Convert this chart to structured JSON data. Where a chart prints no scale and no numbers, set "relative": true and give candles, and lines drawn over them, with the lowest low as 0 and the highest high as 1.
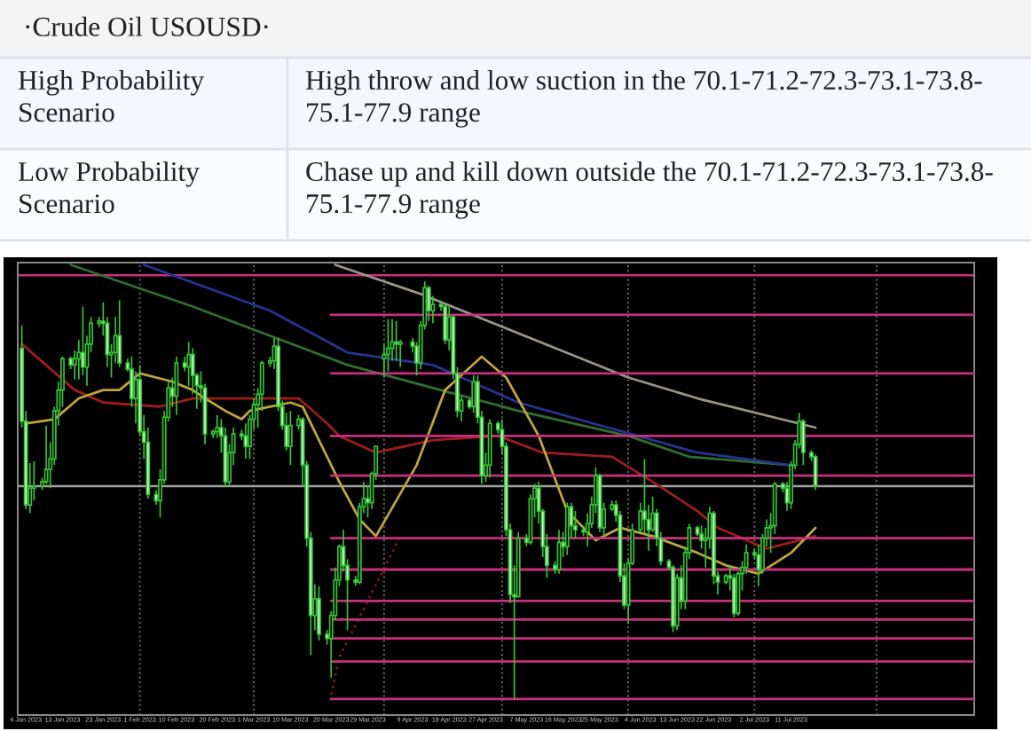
{
  "chart_data": {
    "type": "candlestick",
    "title": "·Crude Oil USOUSD·",
    "annotations": [
      "High Probability Scenario",
      "High throw and low suction in the 70.1-71.2-72.3-73.1-73.8-75.1-77.9 range",
      "Low Probability Scenario",
      "Chase up and kill down outside the 70.1-71.2-72.3-73.1-73.8-75.1-77.9 range"
    ],
    "relative": true,
    "tick_labels": "x",
    "color": "#35c435",
    "x": [
      "2023-01-03",
      "2023-01-04",
      "2023-01-05",
      "2023-01-06",
      "2023-01-08",
      "2023-01-09",
      "2023-01-10",
      "2023-01-11",
      "2023-01-12",
      "2023-01-13",
      "2023-01-15",
      "2023-01-16",
      "2023-01-17",
      "2023-01-18",
      "2023-01-19",
      "2023-01-20",
      "2023-01-22",
      "2023-01-23",
      "2023-01-24",
      "2023-01-25",
      "2023-01-26",
      "2023-01-27",
      "2023-01-29",
      "2023-01-30",
      "2023-01-31",
      "2023-02-01",
      "2023-02-02",
      "2023-02-03",
      "2023-02-05",
      "2023-02-06",
      "2023-02-07",
      "2023-02-08",
      "2023-02-09",
      "2023-02-10",
      "2023-02-12",
      "2023-02-13",
      "2023-02-14",
      "2023-02-15",
      "2023-02-16",
      "2023-02-17",
      "2023-02-19",
      "2023-02-20",
      "2023-02-21",
      "2023-02-22",
      "2023-02-23",
      "2023-02-24",
      "2023-02-26",
      "2023-02-27",
      "2023-02-28",
      "2023-03-01",
      "2023-03-02",
      "2023-03-03",
      "2023-03-05",
      "2023-03-06",
      "2023-03-07",
      "2023-03-08",
      "2023-03-09",
      "2023-03-10",
      "2023-03-12",
      "2023-03-13",
      "2023-03-14",
      "2023-03-15",
      "2023-03-16",
      "2023-03-17",
      "2023-03-19",
      "2023-03-20",
      "2023-03-21",
      "2023-03-22",
      "2023-03-23",
      "2023-03-24",
      "2023-03-26",
      "2023-03-27",
      "2023-03-28",
      "2023-03-29",
      "2023-03-30",
      "2023-03-31",
      "2023-04-02",
      "2023-04-03",
      "2023-04-04",
      "2023-04-05",
      "2023-04-06",
      "2023-04-09",
      "2023-04-10",
      "2023-04-11",
      "2023-04-12",
      "2023-04-13",
      "2023-04-14",
      "2023-04-16",
      "2023-04-17",
      "2023-04-18",
      "2023-04-19",
      "2023-04-20",
      "2023-04-21",
      "2023-04-23",
      "2023-04-24",
      "2023-04-25",
      "2023-04-26",
      "2023-04-27",
      "2023-04-28",
      "2023-04-30",
      "2023-05-01",
      "2023-05-02",
      "2023-05-03",
      "2023-05-04",
      "2023-05-05",
      "2023-05-07",
      "2023-05-08",
      "2023-05-09",
      "2023-05-10",
      "2023-05-11",
      "2023-05-12",
      "2023-05-14",
      "2023-05-15",
      "2023-05-16",
      "2023-05-17",
      "2023-05-18",
      "2023-05-19",
      "2023-05-21",
      "2023-05-22",
      "2023-05-23",
      "2023-05-24",
      "2023-05-25",
      "2023-05-26",
      "2023-05-28",
      "2023-05-29",
      "2023-05-30",
      "2023-05-31",
      "2023-06-01",
      "2023-06-02",
      "2023-06-04",
      "2023-06-05",
      "2023-06-06",
      "2023-06-07",
      "2023-06-08",
      "2023-06-09",
      "2023-06-11",
      "2023-06-12",
      "2023-06-13",
      "2023-06-14",
      "2023-06-15",
      "2023-06-16",
      "2023-06-18",
      "2023-06-19",
      "2023-06-20",
      "2023-06-21",
      "2023-06-22",
      "2023-06-23",
      "2023-06-25",
      "2023-06-26",
      "2023-06-27",
      "2023-06-28",
      "2023-06-29",
      "2023-06-30",
      "2023-07-02",
      "2023-07-03",
      "2023-07-04",
      "2023-07-05",
      "2023-07-06",
      "2023-07-07",
      "2023-07-09",
      "2023-07-10",
      "2023-07-11",
      "2023-07-12",
      "2023-07-13",
      "2023-07-14",
      "2023-07-16",
      "2023-07-17"
    ],
    "ohlc": [
      [
        0.84,
        0.895,
        0.65,
        0.665
      ],
      [
        0.665,
        0.69,
        0.455,
        0.465
      ],
      [
        0.465,
        0.565,
        0.445,
        0.505
      ],
      [
        0.505,
        0.57,
        0.475,
        0.51
      ],
      [
        0.51,
        0.53,
        0.5,
        0.52
      ],
      [
        0.52,
        0.655,
        0.515,
        0.55
      ],
      [
        0.55,
        0.615,
        0.505,
        0.575
      ],
      [
        0.575,
        0.7,
        0.56,
        0.69
      ],
      [
        0.69,
        0.76,
        0.655,
        0.74
      ],
      [
        0.74,
        0.82,
        0.7,
        0.815
      ],
      [
        0.815,
        0.82,
        0.79,
        0.8
      ],
      [
        0.8,
        0.835,
        0.765,
        0.815
      ],
      [
        0.815,
        0.86,
        0.765,
        0.83
      ],
      [
        0.83,
        0.94,
        0.775,
        0.795
      ],
      [
        0.795,
        0.87,
        0.75,
        0.85
      ],
      [
        0.85,
        0.915,
        0.83,
        0.9
      ],
      [
        0.9,
        0.915,
        0.89,
        0.905
      ],
      [
        0.905,
        0.95,
        0.87,
        0.9
      ],
      [
        0.9,
        0.915,
        0.795,
        0.825
      ],
      [
        0.825,
        0.85,
        0.77,
        0.83
      ],
      [
        0.83,
        0.915,
        0.805,
        0.87
      ],
      [
        0.87,
        0.955,
        0.795,
        0.805
      ],
      [
        0.805,
        0.815,
        0.785,
        0.79
      ],
      [
        0.79,
        0.82,
        0.7,
        0.72
      ],
      [
        0.72,
        0.785,
        0.66,
        0.765
      ],
      [
        0.765,
        0.8,
        0.63,
        0.64
      ],
      [
        0.64,
        0.68,
        0.575,
        0.615
      ],
      [
        0.615,
        0.65,
        0.48,
        0.49
      ],
      [
        0.49,
        0.5,
        0.465,
        0.475
      ],
      [
        0.475,
        0.55,
        0.435,
        0.525
      ],
      [
        0.525,
        0.69,
        0.515,
        0.675
      ],
      [
        0.675,
        0.76,
        0.665,
        0.745
      ],
      [
        0.745,
        0.77,
        0.7,
        0.725
      ],
      [
        0.725,
        0.82,
        0.68,
        0.805
      ],
      [
        0.805,
        0.82,
        0.785,
        0.795
      ],
      [
        0.795,
        0.855,
        0.75,
        0.825
      ],
      [
        0.825,
        0.84,
        0.73,
        0.775
      ],
      [
        0.775,
        0.78,
        0.695,
        0.75
      ],
      [
        0.75,
        0.785,
        0.71,
        0.745
      ],
      [
        0.745,
        0.755,
        0.61,
        0.635
      ],
      [
        0.635,
        0.645,
        0.625,
        0.64
      ],
      [
        0.64,
        0.68,
        0.625,
        0.65
      ],
      [
        0.65,
        0.67,
        0.59,
        0.63
      ],
      [
        0.63,
        0.65,
        0.51,
        0.52
      ],
      [
        0.52,
        0.61,
        0.51,
        0.59
      ],
      [
        0.59,
        0.65,
        0.56,
        0.635
      ],
      [
        0.635,
        0.645,
        0.62,
        0.63
      ],
      [
        0.63,
        0.66,
        0.575,
        0.605
      ],
      [
        0.605,
        0.68,
        0.575,
        0.67
      ],
      [
        0.67,
        0.72,
        0.645,
        0.705
      ],
      [
        0.705,
        0.745,
        0.65,
        0.73
      ],
      [
        0.73,
        0.81,
        0.69,
        0.805
      ],
      [
        0.805,
        0.82,
        0.795,
        0.81
      ],
      [
        0.81,
        0.865,
        0.79,
        0.845
      ],
      [
        0.845,
        0.865,
        0.69,
        0.7
      ],
      [
        0.7,
        0.715,
        0.645,
        0.655
      ],
      [
        0.655,
        0.685,
        0.595,
        0.605
      ],
      [
        0.605,
        0.69,
        0.56,
        0.655
      ],
      [
        0.655,
        0.68,
        0.645,
        0.67
      ],
      [
        0.67,
        0.675,
        0.51,
        0.56
      ],
      [
        0.56,
        0.57,
        0.365,
        0.385
      ],
      [
        0.385,
        0.4,
        0.105,
        0.2
      ],
      [
        0.2,
        0.275,
        0.165,
        0.24
      ],
      [
        0.24,
        0.27,
        0.14,
        0.155
      ],
      [
        0.155,
        0.165,
        0.13,
        0.145
      ],
      [
        0.145,
        0.21,
        0.05,
        0.2
      ],
      [
        0.2,
        0.315,
        0.19,
        0.285
      ],
      [
        0.285,
        0.37,
        0.27,
        0.365
      ],
      [
        0.365,
        0.405,
        0.305,
        0.32
      ],
      [
        0.32,
        0.335,
        0.165,
        0.285
      ],
      [
        0.285,
        0.295,
        0.27,
        0.28
      ],
      [
        0.28,
        0.47,
        0.275,
        0.46
      ],
      [
        0.46,
        0.52,
        0.445,
        0.48
      ],
      [
        0.48,
        0.51,
        0.435,
        0.47
      ],
      [
        0.47,
        0.545,
        0.455,
        0.54
      ],
      [
        0.54,
        0.605,
        0.525,
        0.605
      ],
      [
        0.815,
        0.85,
        0.77,
        0.825
      ],
      [
        0.825,
        0.91,
        0.785,
        0.84
      ],
      [
        0.84,
        0.91,
        0.81,
        0.855
      ],
      [
        0.855,
        0.905,
        0.81,
        0.85
      ],
      [
        0.85,
        0.86,
        0.795,
        0.855
      ],
      [
        0.855,
        0.865,
        0.83,
        0.845
      ],
      [
        0.845,
        0.855,
        0.775,
        0.805
      ],
      [
        0.805,
        0.905,
        0.79,
        0.895
      ],
      [
        0.895,
        1.0,
        0.885,
        0.985
      ],
      [
        0.985,
        0.99,
        0.905,
        0.93
      ],
      [
        0.93,
        0.965,
        0.9,
        0.945
      ],
      [
        0.945,
        0.95,
        0.93,
        0.94
      ],
      [
        0.94,
        0.945,
        0.85,
        0.86
      ],
      [
        0.86,
        0.94,
        0.835,
        0.915
      ],
      [
        0.915,
        0.92,
        0.765,
        0.78
      ],
      [
        0.78,
        0.795,
        0.675,
        0.69
      ],
      [
        0.69,
        0.725,
        0.665,
        0.715
      ],
      [
        0.715,
        0.72,
        0.695,
        0.7
      ],
      [
        0.7,
        0.775,
        0.685,
        0.76
      ],
      [
        0.76,
        0.775,
        0.66,
        0.675
      ],
      [
        0.675,
        0.69,
        0.515,
        0.535
      ],
      [
        0.535,
        0.59,
        0.52,
        0.56
      ],
      [
        0.56,
        0.67,
        0.53,
        0.66
      ],
      [
        0.66,
        0.665,
        0.635,
        0.645
      ],
      [
        0.645,
        0.67,
        0.585,
        0.605
      ],
      [
        0.605,
        0.615,
        0.39,
        0.405
      ],
      [
        0.405,
        0.42,
        0.23,
        0.25
      ],
      [
        0.25,
        0.32,
        0.0,
        0.245
      ],
      [
        0.245,
        0.4,
        0.245,
        0.385
      ],
      [
        0.385,
        0.395,
        0.365,
        0.375
      ],
      [
        0.375,
        0.49,
        0.37,
        0.48
      ],
      [
        0.48,
        0.515,
        0.435,
        0.505
      ],
      [
        0.505,
        0.52,
        0.42,
        0.45
      ],
      [
        0.45,
        0.455,
        0.34,
        0.365
      ],
      [
        0.365,
        0.395,
        0.29,
        0.32
      ],
      [
        0.32,
        0.33,
        0.3,
        0.31
      ],
      [
        0.31,
        0.405,
        0.3,
        0.375
      ],
      [
        0.375,
        0.4,
        0.34,
        0.365
      ],
      [
        0.365,
        0.47,
        0.345,
        0.46
      ],
      [
        0.46,
        0.47,
        0.385,
        0.415
      ],
      [
        0.415,
        0.45,
        0.385,
        0.405
      ],
      [
        0.405,
        0.415,
        0.39,
        0.4
      ],
      [
        0.4,
        0.445,
        0.365,
        0.42
      ],
      [
        0.42,
        0.485,
        0.41,
        0.465
      ],
      [
        0.465,
        0.555,
        0.445,
        0.535
      ],
      [
        0.535,
        0.54,
        0.4,
        0.41
      ],
      [
        0.41,
        0.47,
        0.39,
        0.455
      ],
      [
        0.455,
        0.475,
        0.45,
        0.465
      ],
      [
        0.465,
        0.475,
        0.425,
        0.44
      ],
      [
        0.44,
        0.45,
        0.28,
        0.295
      ],
      [
        0.295,
        0.325,
        0.215,
        0.225
      ],
      [
        0.225,
        0.335,
        0.18,
        0.325
      ],
      [
        0.325,
        0.42,
        0.32,
        0.405
      ],
      [
        0.405,
        0.47,
        0.4,
        0.45
      ],
      [
        0.45,
        0.575,
        0.395,
        0.43
      ],
      [
        0.43,
        0.465,
        0.355,
        0.405
      ],
      [
        0.405,
        0.485,
        0.4,
        0.445
      ],
      [
        0.445,
        0.455,
        0.365,
        0.385
      ],
      [
        0.385,
        0.4,
        0.32,
        0.33
      ],
      [
        0.33,
        0.335,
        0.31,
        0.315
      ],
      [
        0.315,
        0.32,
        0.16,
        0.175
      ],
      [
        0.175,
        0.3,
        0.165,
        0.29
      ],
      [
        0.29,
        0.32,
        0.215,
        0.235
      ],
      [
        0.235,
        0.365,
        0.215,
        0.35
      ],
      [
        0.35,
        0.42,
        0.335,
        0.41
      ],
      [
        0.41,
        0.415,
        0.39,
        0.395
      ],
      [
        0.395,
        0.415,
        0.36,
        0.38
      ],
      [
        0.38,
        0.41,
        0.315,
        0.385
      ],
      [
        0.385,
        0.46,
        0.36,
        0.445
      ],
      [
        0.445,
        0.45,
        0.275,
        0.295
      ],
      [
        0.295,
        0.305,
        0.25,
        0.28
      ],
      [
        0.28,
        0.3,
        0.275,
        0.295
      ],
      [
        0.295,
        0.32,
        0.26,
        0.29
      ],
      [
        0.29,
        0.3,
        0.195,
        0.205
      ],
      [
        0.205,
        0.305,
        0.2,
        0.3
      ],
      [
        0.3,
        0.33,
        0.26,
        0.315
      ],
      [
        0.315,
        0.37,
        0.3,
        0.35
      ],
      [
        0.35,
        0.36,
        0.335,
        0.345
      ],
      [
        0.345,
        0.37,
        0.27,
        0.31
      ],
      [
        0.31,
        0.395,
        0.3,
        0.385
      ],
      [
        0.385,
        0.43,
        0.365,
        0.41
      ],
      [
        0.41,
        0.445,
        0.35,
        0.415
      ],
      [
        0.415,
        0.52,
        0.395,
        0.515
      ],
      [
        0.515,
        0.52,
        0.495,
        0.505
      ],
      [
        0.505,
        0.52,
        0.45,
        0.47
      ],
      [
        0.47,
        0.57,
        0.455,
        0.56
      ],
      [
        0.56,
        0.62,
        0.55,
        0.61
      ],
      [
        0.61,
        0.685,
        0.6,
        0.665
      ],
      [
        0.665,
        0.67,
        0.56,
        0.59
      ],
      [
        0.59,
        0.595,
        0.57,
        0.58
      ],
      [
        0.58,
        0.585,
        0.5,
        0.51
      ]
    ],
    "colors": [
      "#d8f3d8",
      "#d8f3d8",
      "#000000",
      "#000000",
      "#000000",
      "#000000",
      "#000000",
      "#000000",
      "#000000",
      "#000000",
      "#d8f3d8",
      "#000000",
      "#000000",
      "#d8f3d8",
      "#000000",
      "#000000",
      "#000000",
      "#d8f3d8",
      "#d8f3d8",
      "#000000",
      "#000000",
      "#d8f3d8",
      "#d8f3d8",
      "#d8f3d8",
      "#000000",
      "#d8f3d8",
      "#d8f3d8",
      "#d8f3d8",
      "#d8f3d8",
      "#000000",
      "#000000",
      "#000000",
      "#d8f3d8",
      "#000000",
      "#d8f3d8",
      "#000000",
      "#d8f3d8",
      "#d8f3d8",
      "#d8f3d8",
      "#d8f3d8",
      "#000000",
      "#000000",
      "#d8f3d8",
      "#d8f3d8",
      "#000000",
      "#000000",
      "#d8f3d8",
      "#d8f3d8",
      "#000000",
      "#000000",
      "#000000",
      "#000000",
      "#000000",
      "#000000",
      "#d8f3d8",
      "#d8f3d8",
      "#d8f3d8",
      "#000000",
      "#000000",
      "#d8f3d8",
      "#d8f3d8",
      "#d8f3d8",
      "#000000",
      "#d8f3d8",
      "#d8f3d8",
      "#000000",
      "#000000",
      "#000000",
      "#d8f3d8",
      "#d8f3d8",
      "#d8f3d8",
      "#000000",
      "#000000",
      "#d8f3d8",
      "#000000",
      "#000000",
      "#000000",
      "#000000",
      "#000000",
      "#d8f3d8",
      "#000000",
      "#d8f3d8",
      "#d8f3d8",
      "#000000",
      "#000000",
      "#d8f3d8",
      "#000000",
      "#d8f3d8",
      "#d8f3d8",
      "#000000",
      "#d8f3d8",
      "#d8f3d8",
      "#000000",
      "#d8f3d8",
      "#000000",
      "#d8f3d8",
      "#d8f3d8",
      "#000000",
      "#000000",
      "#d8f3d8",
      "#d8f3d8",
      "#d8f3d8",
      "#d8f3d8",
      "#d8f3d8",
      "#000000",
      "#d8f3d8",
      "#000000",
      "#000000",
      "#d8f3d8",
      "#d8f3d8",
      "#d8f3d8",
      "#d8f3d8",
      "#000000",
      "#d8f3d8",
      "#000000",
      "#d8f3d8",
      "#d8f3d8",
      "#d8f3d8",
      "#000000",
      "#000000",
      "#000000",
      "#d8f3d8",
      "#000000",
      "#000000",
      "#d8f3d8",
      "#d8f3d8",
      "#d8f3d8",
      "#000000",
      "#000000",
      "#000000",
      "#d8f3d8",
      "#d8f3d8",
      "#000000",
      "#d8f3d8",
      "#d8f3d8",
      "#d8f3d8",
      "#d8f3d8",
      "#000000",
      "#d8f3d8",
      "#000000",
      "#000000",
      "#d8f3d8",
      "#d8f3d8",
      "#000000",
      "#000000",
      "#d8f3d8",
      "#d8f3d8",
      "#000000",
      "#d8f3d8",
      "#d8f3d8",
      "#000000",
      "#000000",
      "#000000",
      "#d8f3d8",
      "#d8f3d8",
      "#000000",
      "#000000",
      "#000000",
      "#000000",
      "#d8f3d8",
      "#d8f3d8",
      "#000000",
      "#000000",
      "#000000",
      "#d8f3d8",
      "#d8f3d8",
      "#d8f3d8"
    ],
    "xlim": [
      "2023-01-02",
      "2023-08-25"
    ],
    "xticks": [
      {
        "value": "2023-01-04",
        "label": "4 Jan 2023"
      },
      {
        "value": "2023-01-13",
        "label": "13 Jan 2023"
      },
      {
        "value": "2023-01-23",
        "label": "23 Jan 2023"
      },
      {
        "value": "2023-02-01",
        "label": "1 Feb 2023"
      },
      {
        "value": "2023-02-10",
        "label": "10 Feb 2023"
      },
      {
        "value": "2023-02-20",
        "label": "20 Feb 2023"
      },
      {
        "value": "2023-03-01",
        "label": "1 Mar 2023"
      },
      {
        "value": "2023-03-10",
        "label": "10 Mar 2023"
      },
      {
        "value": "2023-03-20",
        "label": "20 Mar 2023"
      },
      {
        "value": "2023-03-29",
        "label": "29 Mar 2023"
      },
      {
        "value": "2023-04-09",
        "label": "9 Apr 2023"
      },
      {
        "value": "2023-04-18",
        "label": "18 Apr 2023"
      },
      {
        "value": "2023-04-27",
        "label": "27 Apr 2023"
      },
      {
        "value": "2023-05-07",
        "label": "7 May 2023"
      },
      {
        "value": "2023-05-16",
        "label": "16 May 2023"
      },
      {
        "value": "2023-05-25",
        "label": "25 May 2023"
      },
      {
        "value": "2023-06-04",
        "label": "4 Jun 2023"
      },
      {
        "value": "2023-06-13",
        "label": "13 Jun 2023"
      },
      {
        "value": "2023-06-22",
        "label": "22 Jun 2023"
      },
      {
        "value": "2023-07-02",
        "label": "2 Jul 2023"
      },
      {
        "value": "2023-07-11",
        "label": "11 Jul 2023"
      }
    ],
    "series": [
      {
        "type": "line",
        "color": "#9a9488",
        "x": [
          "2023-03-21",
          "2023-04-11",
          "2023-06-01",
          "2023-06-18",
          "2023-07-17"
        ],
        "values": [
          1.04,
          0.97,
          0.77,
          0.72,
          0.65
        ]
      },
      {
        "type": "line",
        "color": "#2f6e2f",
        "x": [
          "2023-01-15",
          "2023-02-14",
          "2023-03-05",
          "2023-03-24",
          "2023-05-05",
          "2023-06-01",
          "2023-06-16",
          "2023-07-11"
        ],
        "values": [
          1.04,
          0.94,
          0.87,
          0.8,
          0.69,
          0.63,
          0.58,
          0.56
        ]
      },
      {
        "type": "line",
        "color": "#26338f",
        "x": [
          "2023-02-02",
          "2023-03-05",
          "2023-03-24",
          "2023-04-14",
          "2023-05-05",
          "2023-06-18",
          "2023-07-11"
        ],
        "values": [
          1.04,
          0.93,
          0.83,
          0.8,
          0.71,
          0.59,
          0.56
        ]
      },
      {
        "type": "line",
        "color": "#a01c1c",
        "x": [
          "2023-01-03",
          "2023-01-16",
          "2023-01-23",
          "2023-02-06",
          "2023-02-14",
          "2023-02-21",
          "2023-03-12",
          "2023-03-19",
          "2023-03-22",
          "2023-03-31",
          "2023-04-14",
          "2023-04-30",
          "2023-05-11",
          "2023-05-28",
          "2023-06-07",
          "2023-06-18",
          "2023-06-23",
          "2023-07-05",
          "2023-07-17"
        ],
        "values": [
          0.85,
          0.74,
          0.71,
          0.7,
          0.72,
          0.72,
          0.72,
          0.66,
          0.63,
          0.59,
          0.62,
          0.63,
          0.59,
          0.58,
          0.52,
          0.45,
          0.41,
          0.36,
          0.39
        ]
      },
      {
        "type": "line",
        "color": "#7a1a1a",
        "line_style": "dotted",
        "x": [
          "2023-03-20",
          "2023-03-22",
          "2023-04-06"
        ],
        "values": [
          0.01,
          0.1,
          0.39
        ]
      },
      {
        "type": "line",
        "color": "#c0a43c",
        "x": [
          "2023-01-04",
          "2023-01-11",
          "2023-01-17",
          "2023-01-23",
          "2023-01-27",
          "2023-02-01",
          "2023-02-05",
          "2023-02-09",
          "2023-02-14",
          "2023-02-17",
          "2023-02-22",
          "2023-02-26",
          "2023-02-28",
          "2023-03-05",
          "2023-03-10",
          "2023-03-13",
          "2023-03-17",
          "2023-03-22",
          "2023-03-27",
          "2023-03-31",
          "2023-04-10",
          "2023-04-17",
          "2023-04-26",
          "2023-05-02",
          "2023-05-10",
          "2023-05-17",
          "2023-05-24",
          "2023-05-30",
          "2023-06-07",
          "2023-06-18",
          "2023-06-25",
          "2023-07-03",
          "2023-07-11",
          "2023-07-17"
        ],
        "values": [
          0.66,
          0.67,
          0.72,
          0.74,
          0.74,
          0.78,
          0.77,
          0.76,
          0.74,
          0.72,
          0.69,
          0.67,
          0.69,
          0.7,
          0.71,
          0.7,
          0.62,
          0.52,
          0.43,
          0.39,
          0.56,
          0.74,
          0.82,
          0.77,
          0.63,
          0.45,
          0.38,
          0.41,
          0.39,
          0.35,
          0.32,
          0.3,
          0.35,
          0.41
        ]
      },
      {
        "type": "line",
        "color": "#c8307f",
        "x": [
          "2023-03-20",
          "2023-08-25"
        ],
        "values": [
          0.92,
          0.92
        ]
      },
      {
        "type": "line",
        "color": "#c8307f",
        "x": [
          "2023-03-20",
          "2023-08-25"
        ],
        "values": [
          0.78,
          0.78
        ]
      },
      {
        "type": "line",
        "color": "#c8307f",
        "x": [
          "2023-03-20",
          "2023-08-25"
        ],
        "values": [
          0.63,
          0.63
        ]
      },
      {
        "type": "line",
        "color": "#c8307f",
        "x": [
          "2023-03-20",
          "2023-08-25"
        ],
        "values": [
          0.535,
          0.535
        ]
      },
      {
        "type": "line",
        "color": "#c8307f",
        "x": [
          "2023-03-20",
          "2023-08-25"
        ],
        "values": [
          0.385,
          0.385
        ]
      },
      {
        "type": "line",
        "color": "#c8307f",
        "x": [
          "2023-03-20",
          "2023-08-25"
        ],
        "values": [
          0.31,
          0.31
        ]
      },
      {
        "type": "line",
        "color": "#c8307f",
        "x": [
          "2023-03-20",
          "2023-08-25"
        ],
        "values": [
          0.235,
          0.235
        ]
      },
      {
        "type": "line",
        "color": "#c8307f",
        "x": [
          "2023-03-20",
          "2023-08-25"
        ],
        "values": [
          0.19,
          0.19
        ]
      },
      {
        "type": "line",
        "color": "#c8307f",
        "x": [
          "2023-03-20",
          "2023-08-25"
        ],
        "values": [
          0.145,
          0.145
        ]
      },
      {
        "type": "line",
        "color": "#c8307f",
        "x": [
          "2023-03-20",
          "2023-08-25"
        ],
        "values": [
          0.09,
          0.09
        ]
      },
      {
        "type": "line",
        "color": "#c8307f",
        "x": [
          "2023-03-20",
          "2023-08-25"
        ],
        "values": [
          0.0,
          0.0
        ]
      }
    ],
    "ref_lines": [
      {
        "axis": "x",
        "value": "2023-02-01",
        "color": "#6b6b6b",
        "line_style": "dotted"
      },
      {
        "axis": "x",
        "value": "2023-03-01",
        "color": "#6b6b6b",
        "line_style": "dotted"
      },
      {
        "axis": "x",
        "value": "2023-04-02",
        "color": "#6b6b6b",
        "line_style": "dotted"
      },
      {
        "axis": "x",
        "value": "2023-05-01",
        "color": "#6b6b6b",
        "line_style": "dotted"
      },
      {
        "axis": "x",
        "value": "2023-06-01",
        "color": "#6b6b6b",
        "line_style": "dotted"
      },
      {
        "axis": "x",
        "value": "2023-07-02",
        "color": "#6b6b6b",
        "line_style": "dotted"
      },
      {
        "axis": "x",
        "value": "2023-08-01",
        "color": "#6b6b6b",
        "line_style": "dotted"
      },
      {
        "axis": "y",
        "value": 0.51,
        "color": "#a0a0a0",
        "line_style": "solid"
      },
      {
        "axis": "y",
        "value": 1.015,
        "color": "#c8307f",
        "line_style": "solid"
      }
    ]
  }
}
